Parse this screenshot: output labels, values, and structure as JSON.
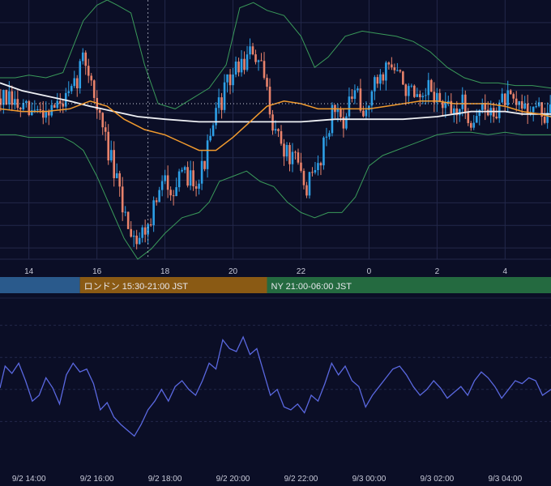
{
  "colors": {
    "background": "#0b0e26",
    "grid": "#23284a",
    "candle_up": "#2d9fe6",
    "candle_down": "#e8826b",
    "ma_short": "#f29b2e",
    "ma_long": "#eef0f4",
    "bollinger": "#3a9a5a",
    "oscillator": "#5a68e0",
    "tokyo_session": "#2a5a8c",
    "london_session": "#8a5a14",
    "ny_session": "#246a40",
    "ref_line": "#c9ccd8"
  },
  "sessions": [
    {
      "label": "",
      "color": "#2a5a8c",
      "start": 12.0,
      "end": 15.5
    },
    {
      "label": "ロンドン 15:30-21:00 JST",
      "color": "#8a5a14",
      "start": 15.5,
      "end": 21.0
    },
    {
      "label": "NY 21:00-06:00 JST",
      "color": "#246a40",
      "start": 21.0,
      "end": 30.0
    }
  ],
  "chart_data": [
    {
      "type": "candlestick",
      "x_range_hours": [
        13.15,
        29.35
      ],
      "y_range": [
        0,
        100
      ],
      "x_ticks": [
        {
          "h": 14,
          "label": "14"
        },
        {
          "h": 16,
          "label": "16"
        },
        {
          "h": 18,
          "label": "18"
        },
        {
          "h": 20,
          "label": "20"
        },
        {
          "h": 22,
          "label": "22"
        },
        {
          "h": 24,
          "label": "0"
        },
        {
          "h": 26,
          "label": "2"
        },
        {
          "h": 28,
          "label": "4"
        }
      ],
      "crosshair_hour": 17.5,
      "reference_level": 60,
      "close_series": [
        [
          13.15,
          62
        ],
        [
          13.5,
          60
        ],
        [
          14.0,
          56
        ],
        [
          14.5,
          58
        ],
        [
          15.0,
          60
        ],
        [
          15.3,
          64
        ],
        [
          15.5,
          74
        ],
        [
          15.6,
          78
        ],
        [
          15.8,
          72
        ],
        [
          16.0,
          58
        ],
        [
          16.3,
          44
        ],
        [
          16.6,
          28
        ],
        [
          16.8,
          18
        ],
        [
          17.0,
          12
        ],
        [
          17.2,
          8
        ],
        [
          17.5,
          14
        ],
        [
          17.8,
          24
        ],
        [
          18.0,
          30
        ],
        [
          18.3,
          28
        ],
        [
          18.7,
          33
        ],
        [
          19.0,
          31
        ],
        [
          19.3,
          44
        ],
        [
          19.6,
          60
        ],
        [
          20.0,
          72
        ],
        [
          20.3,
          76
        ],
        [
          20.6,
          80
        ],
        [
          20.9,
          70
        ],
        [
          21.2,
          52
        ],
        [
          21.5,
          42
        ],
        [
          21.9,
          36
        ],
        [
          22.1,
          28
        ],
        [
          22.3,
          30
        ],
        [
          22.5,
          36
        ],
        [
          22.8,
          52
        ],
        [
          23.0,
          58
        ],
        [
          23.3,
          54
        ],
        [
          23.6,
          66
        ],
        [
          23.8,
          52
        ],
        [
          24.0,
          62
        ],
        [
          24.3,
          70
        ],
        [
          24.6,
          76
        ],
        [
          24.9,
          70
        ],
        [
          25.2,
          64
        ],
        [
          25.5,
          58
        ],
        [
          25.8,
          66
        ],
        [
          26.1,
          60
        ],
        [
          26.4,
          56
        ],
        [
          26.7,
          60
        ],
        [
          27.0,
          54
        ],
        [
          27.3,
          58
        ],
        [
          27.6,
          56
        ],
        [
          28.0,
          62
        ],
        [
          28.3,
          58
        ],
        [
          28.6,
          60
        ],
        [
          28.9,
          58
        ],
        [
          29.2,
          55
        ],
        [
          29.35,
          56
        ]
      ],
      "ma_short": [
        [
          13.15,
          58
        ],
        [
          13.8,
          57
        ],
        [
          14.5,
          57
        ],
        [
          15.2,
          58
        ],
        [
          15.8,
          61
        ],
        [
          16.3,
          59
        ],
        [
          16.8,
          54
        ],
        [
          17.4,
          50
        ],
        [
          18.0,
          48
        ],
        [
          18.5,
          45
        ],
        [
          19.0,
          42
        ],
        [
          19.5,
          42
        ],
        [
          20.0,
          47
        ],
        [
          20.5,
          53
        ],
        [
          21.0,
          59
        ],
        [
          21.5,
          61
        ],
        [
          22.0,
          60
        ],
        [
          22.5,
          58
        ],
        [
          23.0,
          58
        ],
        [
          23.5,
          58
        ],
        [
          24.0,
          58
        ],
        [
          24.5,
          59
        ],
        [
          25.0,
          60
        ],
        [
          25.5,
          61
        ],
        [
          26.0,
          61
        ],
        [
          26.5,
          60
        ],
        [
          27.0,
          60
        ],
        [
          27.5,
          60
        ],
        [
          28.0,
          59
        ],
        [
          28.5,
          57
        ],
        [
          29.0,
          56
        ],
        [
          29.35,
          55
        ]
      ],
      "ma_long": [
        [
          13.15,
          68
        ],
        [
          13.8,
          65
        ],
        [
          14.5,
          63
        ],
        [
          15.2,
          61
        ],
        [
          15.8,
          59
        ],
        [
          16.5,
          57
        ],
        [
          17.2,
          55
        ],
        [
          18.0,
          54
        ],
        [
          19.0,
          53
        ],
        [
          20.0,
          53
        ],
        [
          21.0,
          53
        ],
        [
          22.0,
          53
        ],
        [
          23.0,
          54
        ],
        [
          24.0,
          54
        ],
        [
          25.0,
          54
        ],
        [
          26.0,
          55
        ],
        [
          26.5,
          56
        ],
        [
          27.0,
          57
        ],
        [
          27.5,
          57
        ],
        [
          28.0,
          57
        ],
        [
          28.5,
          56
        ],
        [
          29.0,
          56
        ],
        [
          29.35,
          56
        ]
      ],
      "bollinger_upper": [
        [
          13.15,
          70
        ],
        [
          13.6,
          70
        ],
        [
          14.0,
          71
        ],
        [
          14.5,
          70
        ],
        [
          15.0,
          72
        ],
        [
          15.3,
          82
        ],
        [
          15.6,
          92
        ],
        [
          16.0,
          98
        ],
        [
          16.3,
          100
        ],
        [
          16.6,
          98
        ],
        [
          17.0,
          95
        ],
        [
          17.4,
          75
        ],
        [
          17.8,
          60
        ],
        [
          18.3,
          58
        ],
        [
          18.8,
          62
        ],
        [
          19.3,
          66
        ],
        [
          19.8,
          75
        ],
        [
          20.2,
          97
        ],
        [
          20.6,
          99
        ],
        [
          21.0,
          96
        ],
        [
          21.5,
          94
        ],
        [
          22.0,
          86
        ],
        [
          22.4,
          74
        ],
        [
          22.8,
          78
        ],
        [
          23.3,
          86
        ],
        [
          23.8,
          88
        ],
        [
          24.3,
          87
        ],
        [
          24.8,
          86
        ],
        [
          25.3,
          84
        ],
        [
          25.8,
          80
        ],
        [
          26.3,
          74
        ],
        [
          26.8,
          70
        ],
        [
          27.3,
          68
        ],
        [
          27.8,
          68
        ],
        [
          28.3,
          67
        ],
        [
          28.8,
          67
        ],
        [
          29.35,
          66
        ]
      ],
      "bollinger_lower": [
        [
          13.15,
          48
        ],
        [
          13.6,
          48
        ],
        [
          14.0,
          47
        ],
        [
          14.5,
          47
        ],
        [
          15.0,
          47
        ],
        [
          15.3,
          45
        ],
        [
          15.6,
          42
        ],
        [
          16.0,
          32
        ],
        [
          16.4,
          20
        ],
        [
          16.8,
          8
        ],
        [
          17.2,
          0
        ],
        [
          17.6,
          4
        ],
        [
          18.0,
          10
        ],
        [
          18.5,
          16
        ],
        [
          19.0,
          18
        ],
        [
          19.3,
          22
        ],
        [
          19.6,
          30
        ],
        [
          20.0,
          32
        ],
        [
          20.4,
          34
        ],
        [
          20.8,
          30
        ],
        [
          21.2,
          28
        ],
        [
          21.6,
          22
        ],
        [
          22.0,
          18
        ],
        [
          22.4,
          16
        ],
        [
          22.8,
          18
        ],
        [
          23.2,
          18
        ],
        [
          23.6,
          24
        ],
        [
          24.0,
          36
        ],
        [
          24.4,
          40
        ],
        [
          24.8,
          42
        ],
        [
          25.2,
          44
        ],
        [
          25.6,
          46
        ],
        [
          26.0,
          48
        ],
        [
          26.5,
          49
        ],
        [
          27.0,
          49
        ],
        [
          27.5,
          48
        ],
        [
          28.0,
          49
        ],
        [
          28.5,
          48
        ],
        [
          29.0,
          48
        ],
        [
          29.35,
          48
        ]
      ]
    },
    {
      "type": "line",
      "y_range": [
        0,
        100
      ],
      "series": [
        {
          "values": [
            [
              13.15,
              45
            ],
            [
              13.3,
              60
            ],
            [
              13.5,
              55
            ],
            [
              13.7,
              62
            ],
            [
              13.9,
              50
            ],
            [
              14.1,
              36
            ],
            [
              14.3,
              40
            ],
            [
              14.5,
              52
            ],
            [
              14.7,
              45
            ],
            [
              14.9,
              34
            ],
            [
              15.1,
              54
            ],
            [
              15.3,
              62
            ],
            [
              15.5,
              56
            ],
            [
              15.7,
              58
            ],
            [
              15.9,
              48
            ],
            [
              16.1,
              30
            ],
            [
              16.3,
              35
            ],
            [
              16.5,
              25
            ],
            [
              16.7,
              20
            ],
            [
              16.9,
              16
            ],
            [
              17.1,
              12
            ],
            [
              17.3,
              20
            ],
            [
              17.5,
              30
            ],
            [
              17.7,
              36
            ],
            [
              17.9,
              44
            ],
            [
              18.1,
              36
            ],
            [
              18.3,
              46
            ],
            [
              18.5,
              50
            ],
            [
              18.7,
              44
            ],
            [
              18.9,
              40
            ],
            [
              19.1,
              50
            ],
            [
              19.3,
              62
            ],
            [
              19.5,
              58
            ],
            [
              19.7,
              78
            ],
            [
              19.9,
              72
            ],
            [
              20.1,
              70
            ],
            [
              20.3,
              80
            ],
            [
              20.5,
              68
            ],
            [
              20.7,
              72
            ],
            [
              20.9,
              56
            ],
            [
              21.1,
              40
            ],
            [
              21.3,
              44
            ],
            [
              21.5,
              32
            ],
            [
              21.7,
              30
            ],
            [
              21.9,
              34
            ],
            [
              22.1,
              28
            ],
            [
              22.3,
              40
            ],
            [
              22.5,
              36
            ],
            [
              22.7,
              48
            ],
            [
              22.9,
              62
            ],
            [
              23.1,
              54
            ],
            [
              23.3,
              60
            ],
            [
              23.5,
              50
            ],
            [
              23.7,
              46
            ],
            [
              23.9,
              32
            ],
            [
              24.1,
              40
            ],
            [
              24.3,
              46
            ],
            [
              24.5,
              52
            ],
            [
              24.7,
              58
            ],
            [
              24.9,
              60
            ],
            [
              25.1,
              54
            ],
            [
              25.3,
              46
            ],
            [
              25.5,
              40
            ],
            [
              25.7,
              44
            ],
            [
              25.9,
              50
            ],
            [
              26.1,
              45
            ],
            [
              26.3,
              38
            ],
            [
              26.5,
              42
            ],
            [
              26.7,
              46
            ],
            [
              26.9,
              40
            ],
            [
              27.1,
              50
            ],
            [
              27.3,
              56
            ],
            [
              27.5,
              52
            ],
            [
              27.7,
              46
            ],
            [
              27.9,
              38
            ],
            [
              28.1,
              44
            ],
            [
              28.3,
              50
            ],
            [
              28.5,
              48
            ],
            [
              28.7,
              52
            ],
            [
              28.9,
              50
            ],
            [
              29.1,
              40
            ],
            [
              29.35,
              44
            ]
          ]
        }
      ]
    }
  ],
  "time_axis": [
    {
      "h": 14,
      "label": "9/2 14:00"
    },
    {
      "h": 16,
      "label": "9/2 16:00"
    },
    {
      "h": 18,
      "label": "9/2 18:00"
    },
    {
      "h": 20,
      "label": "9/2 20:00"
    },
    {
      "h": 22,
      "label": "9/2 22:00"
    },
    {
      "h": 24,
      "label": "9/3 00:00"
    },
    {
      "h": 26,
      "label": "9/3 02:00"
    },
    {
      "h": 28,
      "label": "9/3 04:00"
    }
  ]
}
